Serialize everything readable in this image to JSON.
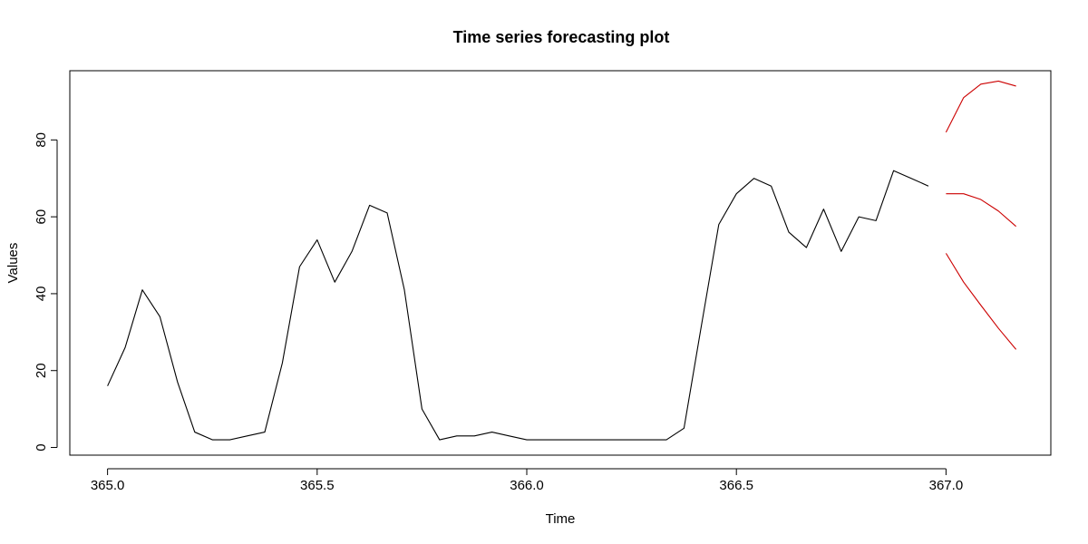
{
  "chart_data": {
    "type": "line",
    "title": "Time series forecasting plot",
    "xlabel": "Time",
    "ylabel": "Values",
    "xlim": [
      364.91,
      367.25
    ],
    "ylim": [
      -2,
      98
    ],
    "x_ticks": [
      365.0,
      365.5,
      366.0,
      366.5,
      367.0
    ],
    "x_tick_labels": [
      "365.0",
      "365.5",
      "366.0",
      "366.5",
      "367.0"
    ],
    "y_ticks": [
      0,
      20,
      40,
      60,
      80
    ],
    "y_tick_labels": [
      "0",
      "20",
      "40",
      "60",
      "80"
    ],
    "grid": false,
    "series": [
      {
        "color": "#000000",
        "points": [
          [
            365.0,
            16
          ],
          [
            365.042,
            26
          ],
          [
            365.083,
            41
          ],
          [
            365.125,
            34
          ],
          [
            365.167,
            17
          ],
          [
            365.208,
            4
          ],
          [
            365.25,
            2
          ],
          [
            365.292,
            2
          ],
          [
            365.333,
            3
          ],
          [
            365.375,
            4
          ],
          [
            365.417,
            22
          ],
          [
            365.458,
            47
          ],
          [
            365.5,
            54
          ],
          [
            365.542,
            43
          ],
          [
            365.583,
            51
          ],
          [
            365.625,
            63
          ],
          [
            365.667,
            61
          ],
          [
            365.708,
            41
          ],
          [
            365.75,
            10
          ],
          [
            365.792,
            2
          ],
          [
            365.833,
            3
          ],
          [
            365.875,
            3
          ],
          [
            365.917,
            4
          ],
          [
            365.958,
            3
          ],
          [
            366.0,
            2
          ],
          [
            366.042,
            2
          ],
          [
            366.083,
            2
          ],
          [
            366.125,
            2
          ],
          [
            366.167,
            2
          ],
          [
            366.208,
            2
          ],
          [
            366.25,
            2
          ],
          [
            366.292,
            2
          ],
          [
            366.333,
            2
          ],
          [
            366.375,
            5
          ],
          [
            366.417,
            32
          ],
          [
            366.458,
            58
          ],
          [
            366.5,
            66
          ],
          [
            366.542,
            70
          ],
          [
            366.583,
            68
          ],
          [
            366.625,
            56
          ],
          [
            366.667,
            52
          ],
          [
            366.708,
            62
          ],
          [
            366.75,
            51
          ],
          [
            366.792,
            60
          ],
          [
            366.833,
            59
          ],
          [
            366.875,
            72
          ],
          [
            366.917,
            70
          ],
          [
            366.958,
            68
          ]
        ]
      },
      {
        "color": "#cc0000",
        "points": [
          [
            367.0,
            82
          ],
          [
            367.042,
            91
          ],
          [
            367.083,
            94.5
          ],
          [
            367.125,
            95.3
          ],
          [
            367.167,
            94
          ]
        ]
      },
      {
        "color": "#cc0000",
        "points": [
          [
            367.0,
            66
          ],
          [
            367.042,
            66
          ],
          [
            367.083,
            64.5
          ],
          [
            367.125,
            61.5
          ],
          [
            367.167,
            57.5
          ]
        ]
      },
      {
        "color": "#cc0000",
        "points": [
          [
            367.0,
            50.5
          ],
          [
            367.042,
            43
          ],
          [
            367.083,
            37
          ],
          [
            367.125,
            31
          ],
          [
            367.167,
            25.5
          ]
        ]
      }
    ]
  }
}
